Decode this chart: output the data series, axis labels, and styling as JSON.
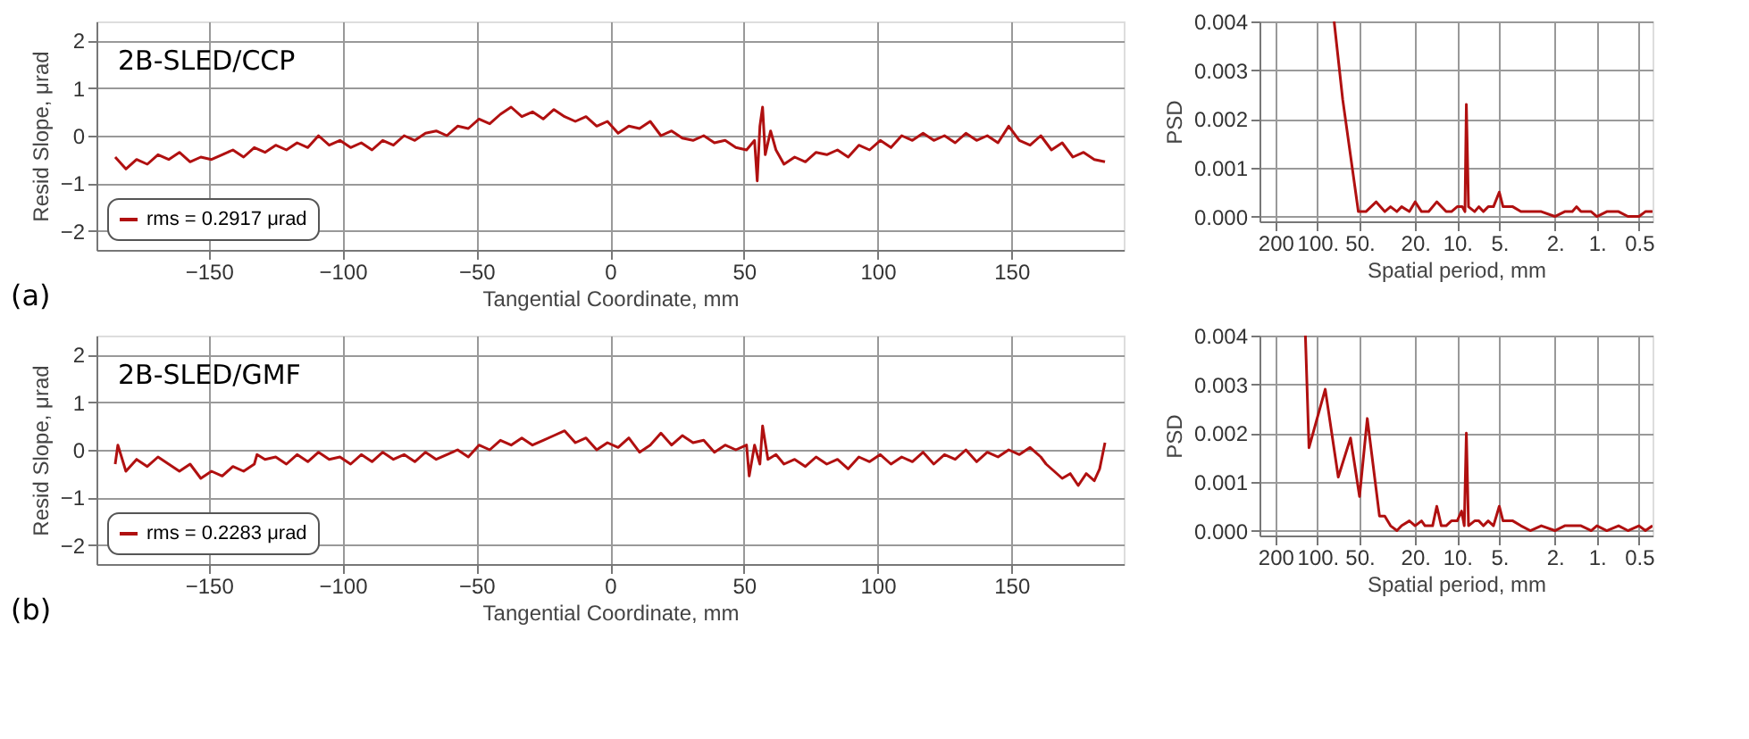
{
  "chart_data": [
    {
      "type": "line",
      "xlabel": "Tangential Coordinate, mm",
      "ylabel": "Resid Slope, μrad",
      "annotations": [
        "2B-SLED/CCP",
        "(a)"
      ],
      "legend": "bottom left",
      "grid": true,
      "xlim": [
        -192,
        192
      ],
      "ylim": [
        -2.4,
        2.4
      ],
      "xticks": [
        -150,
        -100,
        -50,
        0,
        50,
        100,
        150
      ],
      "yticks": [
        -2,
        -1,
        0,
        1,
        2
      ],
      "x": [
        -185,
        -181,
        -177,
        -173,
        -169,
        -165,
        -161,
        -157,
        -153,
        -149,
        -145,
        -141,
        -137,
        -133,
        -129,
        -125,
        -121,
        -117,
        -113,
        -109,
        -105,
        -101,
        -97,
        -93,
        -89,
        -85,
        -81,
        -77,
        -73,
        -69,
        -65,
        -61,
        -57,
        -53,
        -49,
        -45,
        -41,
        -37,
        -33,
        -29,
        -25,
        -21,
        -17,
        -13,
        -9,
        -5,
        -1,
        3,
        7,
        11,
        15,
        19,
        23,
        27,
        31,
        35,
        39,
        43,
        47,
        51,
        54,
        55,
        56,
        57,
        58,
        60,
        62,
        65,
        69,
        73,
        77,
        81,
        85,
        89,
        93,
        97,
        101,
        105,
        109,
        113,
        117,
        121,
        125,
        129,
        133,
        137,
        141,
        145,
        149,
        153,
        157,
        161,
        165,
        169,
        173,
        177,
        181,
        185
      ],
      "series": [
        {
          "name": "rms = 0.2917 μrad",
          "color": "#b01010",
          "values": [
            -0.45,
            -0.7,
            -0.5,
            -0.6,
            -0.4,
            -0.5,
            -0.35,
            -0.55,
            -0.45,
            -0.5,
            -0.4,
            -0.3,
            -0.45,
            -0.25,
            -0.35,
            -0.2,
            -0.3,
            -0.15,
            -0.25,
            0.0,
            -0.2,
            -0.1,
            -0.25,
            -0.15,
            -0.3,
            -0.1,
            -0.2,
            0.0,
            -0.1,
            0.05,
            0.1,
            0.0,
            0.2,
            0.15,
            0.35,
            0.25,
            0.45,
            0.6,
            0.4,
            0.5,
            0.35,
            0.55,
            0.4,
            0.3,
            0.4,
            0.2,
            0.3,
            0.05,
            0.2,
            0.15,
            0.3,
            0.0,
            0.1,
            -0.05,
            -0.1,
            0.0,
            -0.15,
            -0.1,
            -0.25,
            -0.3,
            -0.1,
            -0.95,
            0.2,
            0.6,
            -0.4,
            0.1,
            -0.3,
            -0.6,
            -0.45,
            -0.55,
            -0.35,
            -0.4,
            -0.3,
            -0.45,
            -0.2,
            -0.3,
            -0.1,
            -0.25,
            0.0,
            -0.1,
            0.05,
            -0.1,
            0.0,
            -0.15,
            0.05,
            -0.1,
            0.0,
            -0.15,
            0.2,
            -0.1,
            -0.2,
            0.0,
            -0.3,
            -0.15,
            -0.45,
            -0.35,
            -0.5,
            -0.55
          ]
        }
      ]
    },
    {
      "type": "line",
      "xlabel": "Spatial period, mm",
      "ylabel": "PSD",
      "log": "x",
      "grid": true,
      "xlim": [
        260,
        0.4
      ],
      "ylim": [
        -0.0001,
        0.004
      ],
      "xticks": [
        {
          "value": 200,
          "label": "200"
        },
        {
          "value": 100,
          "label": "100."
        },
        {
          "value": 50,
          "label": "50."
        },
        {
          "value": 20,
          "label": "20."
        },
        {
          "value": 10,
          "label": "10."
        },
        {
          "value": 5,
          "label": "5."
        },
        {
          "value": 2,
          "label": "2."
        },
        {
          "value": 1,
          "label": "1."
        },
        0.5
      ],
      "yticks": [
        {
          "value": 0,
          "label": "0.000"
        },
        0.001,
        0.002,
        0.003,
        0.004
      ],
      "series": [
        {
          "color": "#b01010",
          "x": [
            76,
            66,
            51,
            45,
            38,
            33,
            30,
            27,
            25,
            22,
            20,
            18,
            16,
            14,
            12,
            11,
            10,
            9.2,
            8.8,
            8.6,
            8.3,
            7.5,
            7,
            6.5,
            6,
            5.5,
            5,
            4.7,
            4.5,
            4,
            3.5,
            3,
            2.5,
            2,
            1.7,
            1.5,
            1.4,
            1.3,
            1.1,
            1,
            0.85,
            0.7,
            0.6,
            0.5,
            0.45,
            0.4
          ],
          "values": [
            0.004,
            0.0024,
            0.0001,
            0.0001,
            0.0003,
            0.0001,
            0.0002,
            0.0001,
            0.0002,
            0.0001,
            0.0003,
            0.0001,
            0.0001,
            0.0003,
            0.0001,
            0.0001,
            0.0002,
            0.0002,
            0.0001,
            0.0023,
            0.0002,
            0.0001,
            0.0002,
            0.0001,
            0.0002,
            0.0002,
            0.0005,
            0.0002,
            0.0002,
            0.0002,
            0.0001,
            0.0001,
            0.0001,
            0.0,
            0.0001,
            0.0001,
            0.0002,
            0.0001,
            0.0001,
            0.0,
            0.0001,
            0.0001,
            0.0,
            0.0,
            0.0001,
            0.0001
          ]
        }
      ]
    },
    {
      "type": "line",
      "xlabel": "Tangential Coordinate, mm",
      "ylabel": "Resid Slope, μrad",
      "annotations": [
        "2B-SLED/GMF",
        "(b)"
      ],
      "legend": "bottom left",
      "grid": true,
      "xlim": [
        -192,
        192
      ],
      "ylim": [
        -2.4,
        2.4
      ],
      "xticks": [
        -150,
        -100,
        -50,
        0,
        50,
        100,
        150
      ],
      "yticks": [
        -2,
        -1,
        0,
        1,
        2
      ],
      "x": [
        -185,
        -184,
        -181,
        -177,
        -173,
        -169,
        -165,
        -161,
        -157,
        -153,
        -149,
        -145,
        -141,
        -137,
        -133,
        -132,
        -129,
        -125,
        -121,
        -117,
        -113,
        -109,
        -105,
        -101,
        -97,
        -93,
        -89,
        -85,
        -81,
        -77,
        -73,
        -69,
        -65,
        -61,
        -57,
        -53,
        -49,
        -45,
        -41,
        -37,
        -33,
        -29,
        -25,
        -21,
        -17,
        -13,
        -9,
        -5,
        -1,
        3,
        7,
        11,
        15,
        19,
        23,
        27,
        31,
        35,
        39,
        43,
        47,
        51,
        52,
        54,
        56,
        57,
        59,
        62,
        65,
        69,
        73,
        77,
        81,
        85,
        89,
        93,
        97,
        101,
        105,
        109,
        113,
        117,
        121,
        125,
        129,
        133,
        137,
        141,
        145,
        149,
        153,
        157,
        161,
        163,
        166,
        169,
        172,
        175,
        178,
        181,
        183,
        185
      ],
      "series": [
        {
          "name": "rms = 0.2283 μrad",
          "color": "#b01010",
          "values": [
            -0.3,
            0.1,
            -0.45,
            -0.2,
            -0.35,
            -0.15,
            -0.3,
            -0.45,
            -0.3,
            -0.6,
            -0.45,
            -0.55,
            -0.35,
            -0.45,
            -0.3,
            -0.1,
            -0.2,
            -0.15,
            -0.3,
            -0.1,
            -0.25,
            -0.05,
            -0.2,
            -0.15,
            -0.3,
            -0.1,
            -0.25,
            -0.05,
            -0.2,
            -0.1,
            -0.25,
            -0.05,
            -0.2,
            -0.1,
            0.0,
            -0.15,
            0.1,
            0.0,
            0.2,
            0.1,
            0.25,
            0.1,
            0.2,
            0.3,
            0.4,
            0.15,
            0.25,
            0.0,
            0.15,
            0.05,
            0.25,
            -0.05,
            0.1,
            0.35,
            0.1,
            0.3,
            0.15,
            0.2,
            -0.05,
            0.1,
            0.0,
            0.1,
            -0.55,
            0.1,
            -0.3,
            0.5,
            -0.2,
            -0.1,
            -0.3,
            -0.2,
            -0.35,
            -0.15,
            -0.3,
            -0.2,
            -0.4,
            -0.15,
            -0.25,
            -0.1,
            -0.3,
            -0.15,
            -0.25,
            -0.05,
            -0.3,
            -0.1,
            -0.2,
            0.0,
            -0.25,
            -0.05,
            -0.15,
            0.0,
            -0.1,
            0.05,
            -0.15,
            -0.3,
            -0.45,
            -0.6,
            -0.5,
            -0.75,
            -0.5,
            -0.65,
            -0.4,
            0.15
          ]
        }
      ]
    },
    {
      "type": "line",
      "xlabel": "Spatial period, mm",
      "ylabel": "PSD",
      "log": "x",
      "grid": true,
      "xlim": [
        260,
        0.4
      ],
      "ylim": [
        -0.0001,
        0.004
      ],
      "xticks": [
        {
          "value": 200,
          "label": "200"
        },
        {
          "value": 100,
          "label": "100."
        },
        {
          "value": 50,
          "label": "50."
        },
        {
          "value": 20,
          "label": "20."
        },
        {
          "value": 10,
          "label": "10."
        },
        {
          "value": 5,
          "label": "5."
        },
        {
          "value": 2,
          "label": "2."
        },
        {
          "value": 1,
          "label": "1."
        },
        0.5
      ],
      "yticks": [
        {
          "value": 0,
          "label": "0.000"
        },
        0.001,
        0.002,
        0.003,
        0.004
      ],
      "series": [
        {
          "color": "#b01010",
          "x": [
            122,
            115,
            88,
            71,
            58,
            50,
            44,
            36,
            33,
            30,
            27,
            25,
            22,
            20,
            18,
            17,
            15,
            14,
            13,
            12,
            11,
            10,
            9.3,
            8.9,
            8.6,
            8.3,
            7.5,
            7,
            6.5,
            6,
            5.5,
            5,
            4.7,
            4.5,
            4,
            3.5,
            3,
            2.5,
            2,
            1.7,
            1.5,
            1.3,
            1.1,
            1,
            0.85,
            0.7,
            0.6,
            0.5,
            0.45,
            0.4
          ],
          "values": [
            0.004,
            0.0017,
            0.0029,
            0.0011,
            0.0019,
            0.0007,
            0.0023,
            0.0003,
            0.0003,
            0.0001,
            0.0,
            0.0001,
            0.0002,
            0.0001,
            0.0002,
            0.0001,
            0.0001,
            0.0005,
            0.0001,
            0.0001,
            0.0002,
            0.0002,
            0.0004,
            0.0001,
            0.002,
            0.0001,
            0.0002,
            0.0002,
            0.0001,
            0.0002,
            0.0001,
            0.0005,
            0.0002,
            0.0002,
            0.0002,
            0.0001,
            0.0,
            0.0001,
            0.0,
            0.0001,
            0.0001,
            0.0001,
            0.0,
            0.0001,
            0.0,
            0.0001,
            0.0,
            0.0001,
            0.0,
            0.0001
          ]
        }
      ]
    }
  ]
}
